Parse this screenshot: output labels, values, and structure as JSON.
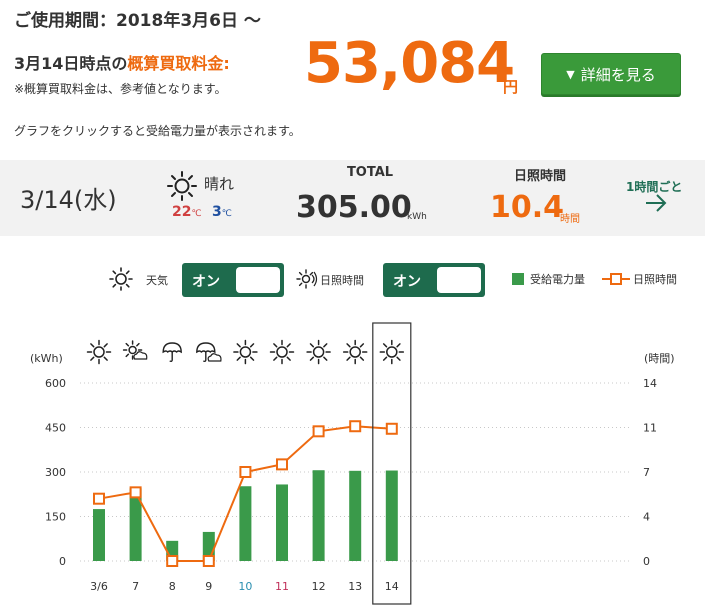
{
  "period": "ご使用期間：2018年3月6日 ～",
  "estimate": {
    "label_prefix": "3月14日時点の",
    "label_highlight": "概算買取料金:",
    "note": "※概算買取料金は、参考値となります。",
    "amount": "53,084",
    "unit": "円",
    "detail_button": "詳細を見る"
  },
  "hint": "グラフをクリックすると受給電力量が表示されます。",
  "summary": {
    "date": "3/14(水)",
    "weather": "晴れ",
    "weather_icon": "sun-icon",
    "temp_max": "22",
    "temp_min": "3",
    "temp_unit": "℃",
    "total_label": "TOTAL",
    "total_value": "305.00",
    "total_unit": "kWh",
    "sunshine_label": "日照時間",
    "sunshine_value": "10.4",
    "sunshine_unit": "時間",
    "per_hour_link": "1時間ごと"
  },
  "toggles": {
    "weather_label": "天気",
    "weather_state": "オン",
    "sunshine_label": "日照時間",
    "sunshine_state": "オン",
    "legend_power": "受給電力量",
    "legend_sunshine": "日照時間"
  },
  "colors": {
    "accent_orange": "#ee6a10",
    "bar_green": "#3a9a4a",
    "toggle_green": "#1e6b4d",
    "saturday_blue": "#2a8fb0",
    "sunday_red": "#c0305a"
  },
  "chart_data": {
    "type": "bar",
    "y_left_label": "(kWh)",
    "y_right_label": "(時間)",
    "y_left_ticks": [
      "600",
      "450",
      "300",
      "150",
      "0"
    ],
    "y_right_ticks": [
      "14",
      "11",
      "7",
      "4",
      "0"
    ],
    "ylim_left": [
      0,
      600
    ],
    "ylim_right": [
      0,
      14
    ],
    "categories": [
      "3/6",
      "7",
      "8",
      "9",
      "10",
      "11",
      "12",
      "13",
      "14"
    ],
    "category_colors": [
      "#333",
      "#333",
      "#333",
      "#333",
      "#2a8fb0",
      "#c0305a",
      "#333",
      "#333",
      "#333"
    ],
    "weather_icons": [
      "sun-icon",
      "sun-cloud-icon",
      "umbrella-icon",
      "umbrella-cloud-icon",
      "sun-icon",
      "sun-icon",
      "sun-icon",
      "sun-icon",
      "sun-icon"
    ],
    "series": [
      {
        "name": "受給電力量",
        "type": "bar",
        "values": [
          175,
          245,
          68,
          98,
          252,
          258,
          306,
          304,
          305
        ]
      },
      {
        "name": "日照時間",
        "type": "line",
        "values": [
          4.9,
          5.4,
          0,
          0,
          7.0,
          7.6,
          10.2,
          10.6,
          10.4
        ]
      }
    ],
    "selected_index": 8,
    "grid": true
  }
}
